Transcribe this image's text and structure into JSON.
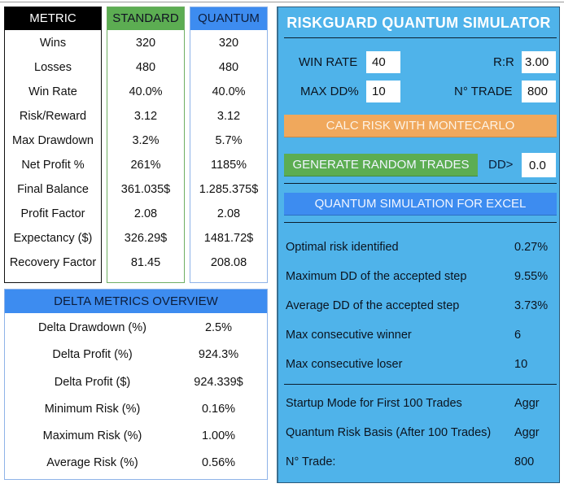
{
  "metrics_table": {
    "headers": {
      "metric": "METRIC",
      "standard": "STANDARD",
      "quantum": "QUANTUM"
    },
    "rows": [
      {
        "metric": "Wins",
        "standard": "320",
        "quantum": "320"
      },
      {
        "metric": "Losses",
        "standard": "480",
        "quantum": "480"
      },
      {
        "metric": "Win Rate",
        "standard": "40.0%",
        "quantum": "40.0%"
      },
      {
        "metric": "Risk/Reward",
        "standard": "3.12",
        "quantum": "3.12"
      },
      {
        "metric": "Max Drawdown",
        "standard": "3.2%",
        "quantum": "5.7%"
      },
      {
        "metric": "Net Profit %",
        "standard": "261%",
        "quantum": "1185%"
      },
      {
        "metric": "Final Balance",
        "standard": "361.035$",
        "quantum": "1.285.375$"
      },
      {
        "metric": "Profit Factor",
        "standard": "2.08",
        "quantum": "2.08"
      },
      {
        "metric": "Expectancy ($)",
        "standard": "326.29$",
        "quantum": "1481.72$"
      },
      {
        "metric": "Recovery Factor",
        "standard": "81.45",
        "quantum": "208.08"
      }
    ]
  },
  "delta_metrics": {
    "title": "DELTA METRICS OVERVIEW",
    "rows": [
      {
        "label": "Delta Drawdown (%)",
        "value": "2.5%"
      },
      {
        "label": "Delta Profit (%)",
        "value": "924.3%"
      },
      {
        "label": "Delta Profit ($)",
        "value": "924.339$"
      },
      {
        "label": "Minimum Risk (%)",
        "value": "0.16%"
      },
      {
        "label": "Maximum Risk (%)",
        "value": "1.00%"
      },
      {
        "label": "Average Risk (%)",
        "value": "0.56%"
      }
    ]
  },
  "simulator": {
    "title": "RISKGUARD QUANTUM SIMULATOR",
    "inputs": {
      "win_rate": {
        "label": "WIN RATE",
        "value": "40"
      },
      "rr": {
        "label": "R:R",
        "value": "3.00"
      },
      "max_dd": {
        "label": "MAX DD%",
        "value": "10"
      },
      "n_trade": {
        "label": "N° TRADE",
        "value": "800"
      },
      "dd_gt": {
        "label": "DD>",
        "value": "0.0"
      }
    },
    "buttons": {
      "calc": "CALC RISK WITH MONTECARLO",
      "generate": "GENERATE RANDOM TRADES",
      "quantum": "QUANTUM SIMULATION FOR EXCEL"
    },
    "results": [
      {
        "label": "Optimal risk identified",
        "value": "0.27%"
      },
      {
        "label": "Maximum DD of the accepted step",
        "value": "9.55%"
      },
      {
        "label": "Average DD of the accepted step",
        "value": "3.73%"
      },
      {
        "label": "Max consecutive winner",
        "value": "6"
      },
      {
        "label": "Max consecutive loser",
        "value": "10"
      }
    ],
    "settings": [
      {
        "label": "Startup Mode for First 100 Trades",
        "value": "Aggr"
      },
      {
        "label": "Quantum Risk Basis (After 100 Trades)",
        "value": "Aggr"
      },
      {
        "label": "N° Trade:",
        "value": "800"
      }
    ]
  },
  "colors": {
    "metric_header": "#000000",
    "standard_header": "#5cad52",
    "quantum_header": "#3d8cf0",
    "panel_bg": "#4fb3ea",
    "calc_button": "#f0a85c",
    "generate_button": "#5cad52",
    "quantum_button": "#3d8cf0"
  }
}
